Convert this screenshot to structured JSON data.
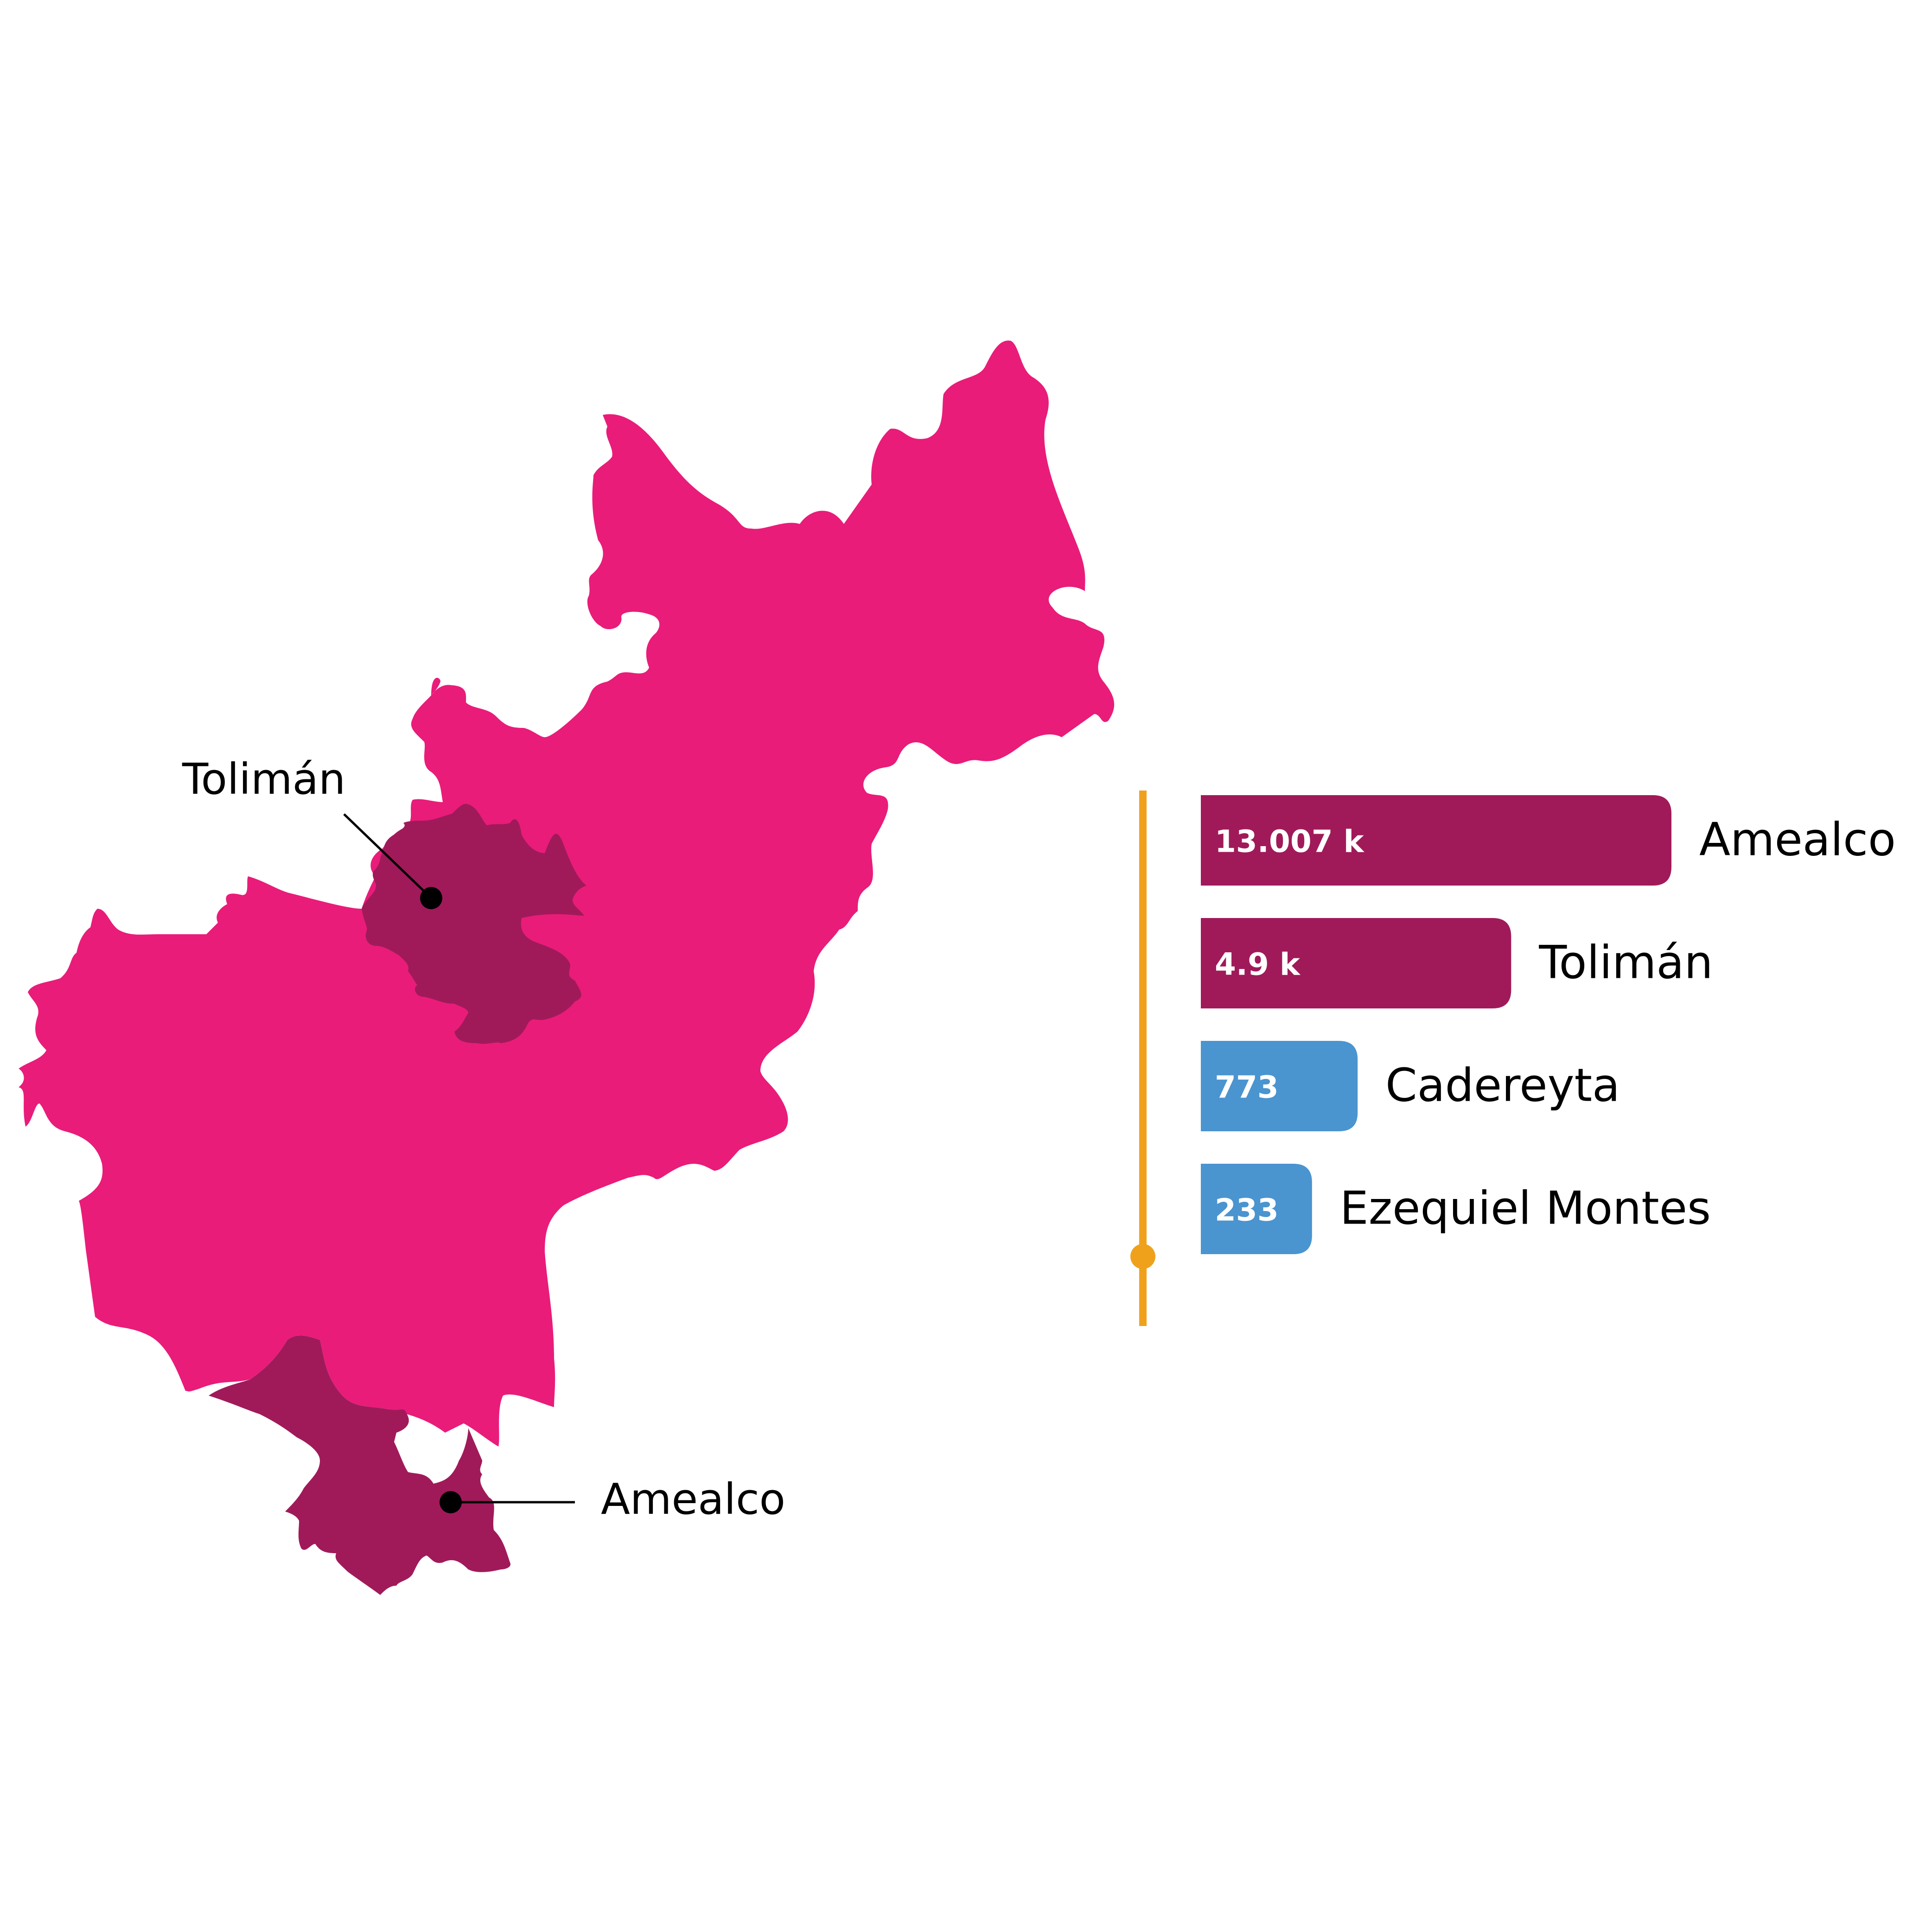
{
  "chart_data": {
    "type": "bar",
    "orientation": "horizontal",
    "categories": [
      "Amealco",
      "Tolimán",
      "Cadereyta",
      "Ezequiel Montes"
    ],
    "values": [
      13007,
      4900,
      773,
      233
    ],
    "value_labels": [
      "13.007 k",
      "4.9 k",
      "773",
      "233"
    ],
    "bar_colors": [
      "#a01a5a",
      "#a01a5a",
      "#4a94d0",
      "#4a94d0"
    ],
    "title": "",
    "xlabel": "",
    "ylabel": "",
    "grid": false,
    "legend": "none"
  },
  "map": {
    "state_color": "#e91c7a",
    "highlight_color": "#a01a5a",
    "labels": [
      "Tolimán",
      "Amealco"
    ]
  },
  "axis_color": "#f0a11c"
}
